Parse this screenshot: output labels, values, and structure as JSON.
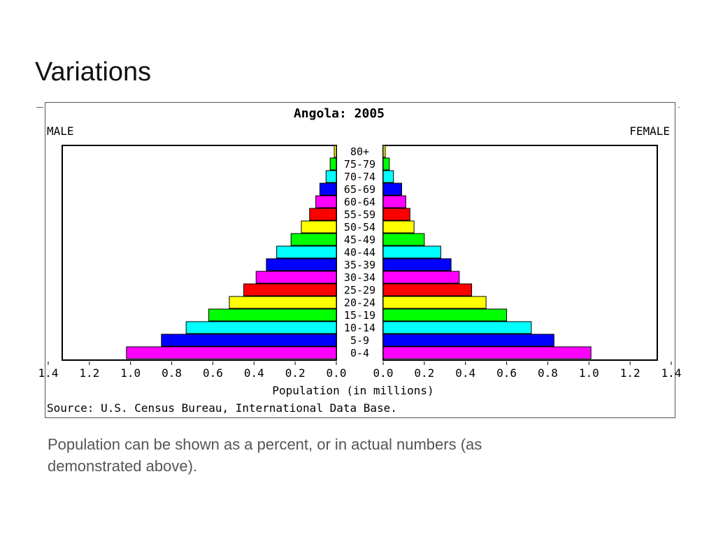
{
  "slide": {
    "title": "Variations",
    "caption": "Population can be shown as a percent, or in actual numbers (as demonstrated above)."
  },
  "chart_data": {
    "type": "bar",
    "subtype": "population-pyramid",
    "title": "Angola: 2005",
    "left_label": "MALE",
    "right_label": "FEMALE",
    "xlabel": "Population (in millions)",
    "source": "Source: U.S. Census Bureau, International Data Base.",
    "xlim": [
      0,
      1.4
    ],
    "ticks": [
      "1.4",
      "1.2",
      "1.0",
      "0.8",
      "0.6",
      "0.4",
      "0.2",
      "0.0"
    ],
    "ticks_right": [
      "0.0",
      "0.2",
      "0.4",
      "0.6",
      "0.8",
      "1.0",
      "1.2",
      "1.4"
    ],
    "categories": [
      "80+",
      "75-79",
      "70-74",
      "65-69",
      "60-64",
      "55-59",
      "50-54",
      "45-49",
      "40-44",
      "35-39",
      "30-34",
      "25-29",
      "20-24",
      "15-19",
      "10-14",
      "5-9",
      "0-4"
    ],
    "colors": [
      "#ffff00",
      "#00ff00",
      "#00ffff",
      "#0000ff",
      "#ff00ff",
      "#ff0000",
      "#ffff00",
      "#00ff00",
      "#00ffff",
      "#0000ff",
      "#ff00ff",
      "#ff0000",
      "#ffff00",
      "#00ff00",
      "#00ffff",
      "#0000ff",
      "#ff00ff"
    ],
    "series": [
      {
        "name": "MALE",
        "values": [
          0.01,
          0.03,
          0.05,
          0.08,
          0.1,
          0.13,
          0.17,
          0.22,
          0.29,
          0.34,
          0.39,
          0.45,
          0.52,
          0.62,
          0.73,
          0.85,
          1.02
        ]
      },
      {
        "name": "FEMALE",
        "values": [
          0.01,
          0.03,
          0.05,
          0.09,
          0.11,
          0.13,
          0.15,
          0.2,
          0.28,
          0.33,
          0.37,
          0.43,
          0.5,
          0.6,
          0.72,
          0.83,
          1.01
        ]
      }
    ],
    "grid": false,
    "legend": "none"
  }
}
